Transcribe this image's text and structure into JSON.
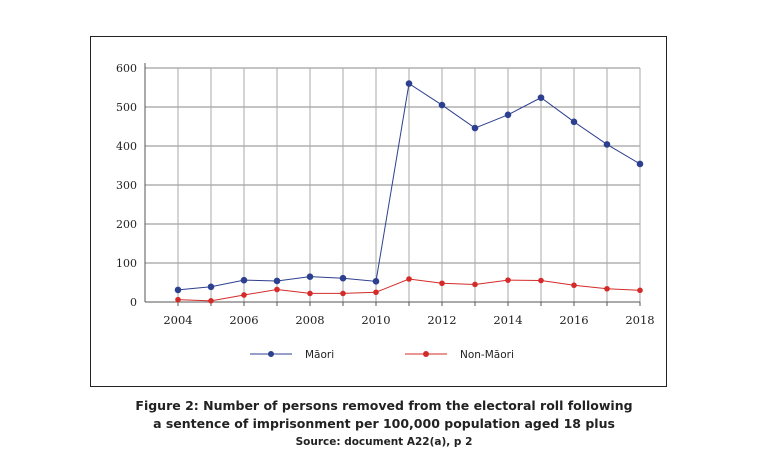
{
  "chart_data": {
    "type": "line",
    "x": [
      2004,
      2005,
      2006,
      2007,
      2008,
      2009,
      2010,
      2011,
      2012,
      2013,
      2014,
      2015,
      2016,
      2017,
      2018
    ],
    "xticks": [
      "2004",
      "2006",
      "2008",
      "2010",
      "2012",
      "2014",
      "2016",
      "2018"
    ],
    "yticks": [
      "0",
      "100",
      "200",
      "300",
      "400",
      "500",
      "600"
    ],
    "ylim": [
      0,
      600
    ],
    "grid": true,
    "legend": "bottom",
    "series": [
      {
        "name": "Māori",
        "color": "#2d3f8f",
        "values": [
          31,
          39,
          56,
          54,
          65,
          61,
          53,
          560,
          505,
          446,
          480,
          524,
          462,
          404,
          354
        ]
      },
      {
        "name": "Non-Māori",
        "color": "#d42a2a",
        "values": [
          6,
          3,
          18,
          32,
          22,
          22,
          25,
          59,
          48,
          45,
          56,
          55,
          43,
          34,
          30
        ]
      }
    ]
  },
  "caption": {
    "line1": "Figure 2: Number of persons removed from the electoral roll following",
    "line2": "a sentence of imprisonment per 100,000 population aged 18 plus",
    "source": "Source: document A22(a), p 2"
  }
}
